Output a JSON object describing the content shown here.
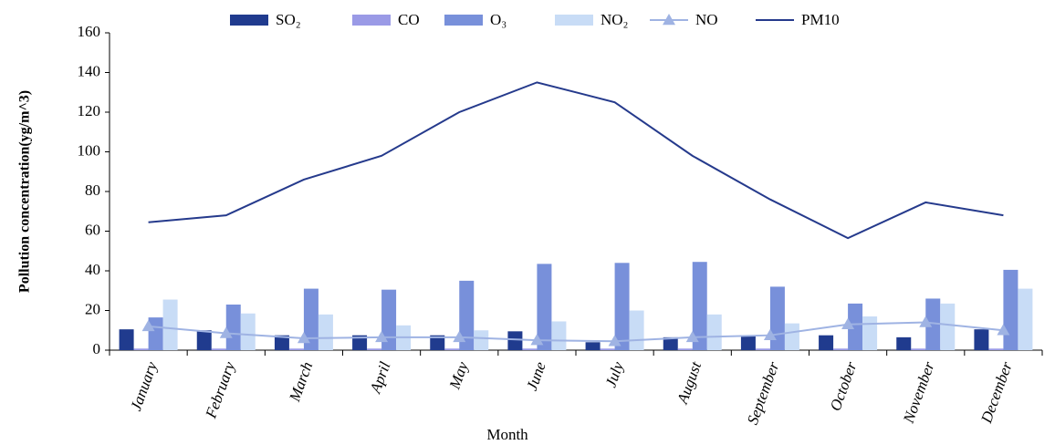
{
  "chart_data": {
    "type": "bar_line",
    "x_label": "Month",
    "y_label": "Pollution concentration(yg/m^3)",
    "categories": [
      "January",
      "February",
      "March",
      "April",
      "May",
      "June",
      "July",
      "August",
      "September",
      "October",
      "November",
      "December"
    ],
    "series": [
      {
        "name": "SO₂",
        "type": "bar",
        "color": "#203b8e",
        "values": [
          10.5,
          10,
          7.5,
          7.5,
          7.5,
          9.5,
          4,
          6.5,
          7.5,
          7.5,
          6.5,
          10.5
        ]
      },
      {
        "name": "CO",
        "type": "bar",
        "color": "#9a9ae6",
        "values": [
          0.8,
          0.8,
          0.8,
          0.8,
          0.8,
          0.8,
          0.8,
          0.8,
          0.8,
          0.8,
          0.8,
          0.8
        ]
      },
      {
        "name": "O₃",
        "type": "bar",
        "color": "#7890da",
        "values": [
          16.5,
          23,
          31,
          30.5,
          35,
          43.5,
          44,
          44.5,
          32,
          23.5,
          26,
          40.5
        ]
      },
      {
        "name": "NO₂",
        "type": "bar",
        "color": "#c8dcf6",
        "values": [
          25.5,
          18.5,
          18,
          12.5,
          10,
          14.5,
          20,
          18,
          13.5,
          17,
          23.5,
          31
        ]
      },
      {
        "name": "NO",
        "type": "line",
        "marker": "triangle",
        "color": "#9fb3e3",
        "values": [
          12,
          8.5,
          6,
          6.5,
          6.5,
          5,
          4.5,
          6.5,
          7.5,
          13,
          14,
          10
        ]
      },
      {
        "name": "PM10",
        "type": "line",
        "color": "#253a8c",
        "values": [
          64.5,
          68,
          86,
          98,
          120,
          135,
          125,
          98,
          76,
          56.5,
          74.5,
          68
        ]
      }
    ],
    "ylim": [
      0,
      160
    ],
    "yticks": [
      0,
      20,
      40,
      60,
      80,
      100,
      120,
      140,
      160
    ]
  }
}
